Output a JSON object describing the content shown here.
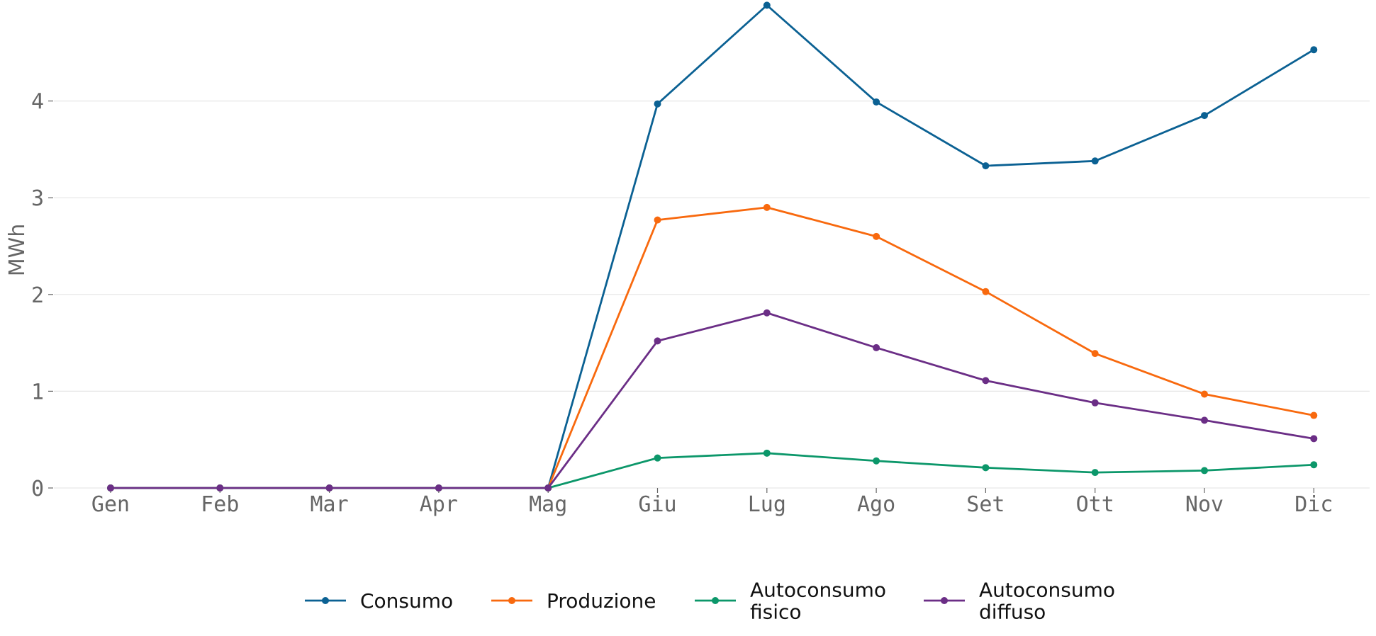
{
  "chart_data": {
    "type": "line",
    "title": "",
    "xlabel": "",
    "ylabel": "MWh",
    "categories": [
      "Gen",
      "Feb",
      "Mar",
      "Apr",
      "Mag",
      "Giu",
      "Lug",
      "Ago",
      "Set",
      "Ott",
      "Nov",
      "Dic"
    ],
    "ylim": [
      0,
      5
    ],
    "yticks": [
      0,
      1,
      2,
      3,
      4
    ],
    "grid": "horizontal",
    "legend_position": "bottom",
    "series": [
      {
        "name": "Consumo",
        "color": "#0b6193",
        "values": [
          0,
          0,
          0,
          0,
          0,
          3.97,
          4.99,
          3.99,
          3.33,
          3.38,
          3.85,
          4.53
        ]
      },
      {
        "name": "Produzione",
        "color": "#f8690e",
        "values": [
          0,
          0,
          0,
          0,
          0,
          2.77,
          2.9,
          2.6,
          2.03,
          1.39,
          0.97,
          0.75
        ]
      },
      {
        "name": "Autoconsumo fisico",
        "color": "#0c976a",
        "values": [
          0,
          0,
          0,
          0,
          0,
          0.31,
          0.36,
          0.28,
          0.21,
          0.16,
          0.18,
          0.24
        ]
      },
      {
        "name": "Autoconsumo diffuso",
        "color": "#6b2e86",
        "values": [
          0,
          0,
          0,
          0,
          0,
          1.52,
          1.81,
          1.45,
          1.11,
          0.88,
          0.7,
          0.51
        ]
      }
    ],
    "legend": [
      {
        "lines": [
          "Consumo"
        ]
      },
      {
        "lines": [
          "Produzione"
        ]
      },
      {
        "lines": [
          "Autoconsumo",
          "fisico"
        ]
      },
      {
        "lines": [
          "Autoconsumo",
          "diffuso"
        ]
      }
    ]
  }
}
